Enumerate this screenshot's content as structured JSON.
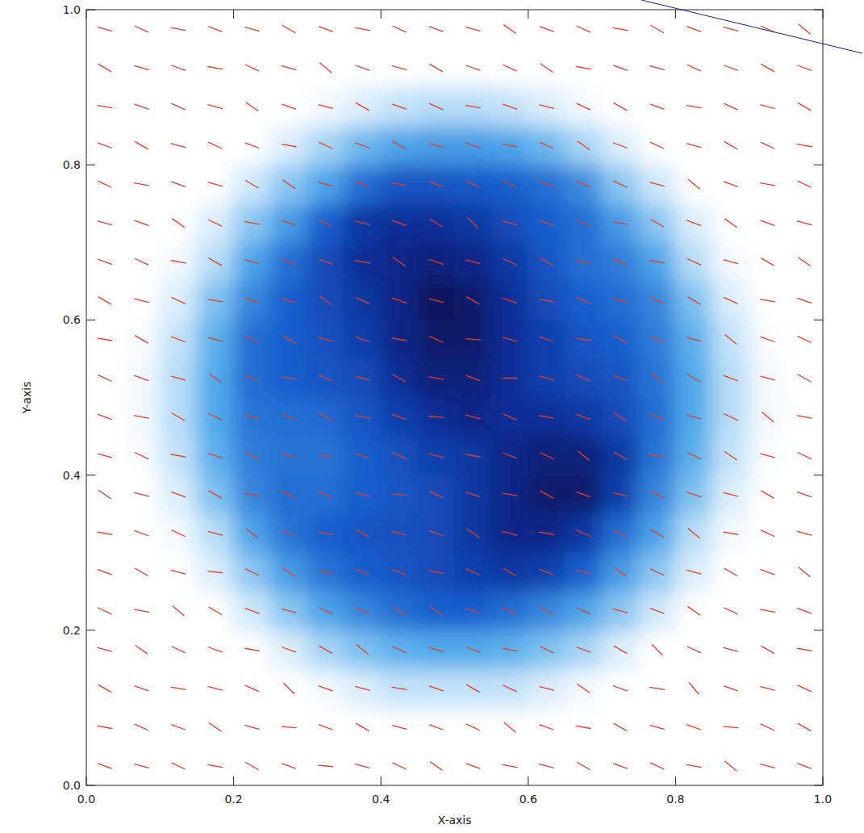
{
  "chart_data": {
    "type": "heatmap",
    "x_label": "X-axis",
    "y_label": "Y-axis",
    "xlim": [
      0,
      1
    ],
    "ylim": [
      0,
      1
    ],
    "xticks": [
      {
        "value": 0,
        "label": "0.0"
      },
      {
        "value": 0.2,
        "label": "0.2"
      },
      {
        "value": 0.4,
        "label": "0.4"
      },
      {
        "value": 0.6,
        "label": "0.6"
      },
      {
        "value": 0.8,
        "label": "0.8"
      },
      {
        "value": 1,
        "label": "1.0"
      }
    ],
    "yticks": [
      {
        "value": 0,
        "label": "0.0"
      },
      {
        "value": 0.2,
        "label": "0.2"
      },
      {
        "value": 0.4,
        "label": "0.4"
      },
      {
        "value": 0.6,
        "label": "0.6"
      },
      {
        "value": 0.8,
        "label": "0.8"
      },
      {
        "value": 1,
        "label": "1.0"
      }
    ],
    "x": [
      0.025,
      0.075,
      0.125,
      0.175,
      0.225,
      0.275,
      0.325,
      0.375,
      0.425,
      0.475,
      0.525,
      0.575,
      0.625,
      0.675,
      0.725,
      0.775,
      0.825,
      0.875,
      0.925,
      0.975
    ],
    "y": [
      0.025,
      0.075,
      0.125,
      0.175,
      0.225,
      0.275,
      0.325,
      0.375,
      0.425,
      0.475,
      0.525,
      0.575,
      0.625,
      0.675,
      0.725,
      0.775,
      0.825,
      0.875,
      0.925,
      0.975
    ],
    "cells": [
      [
        0,
        0,
        0,
        0,
        0,
        0,
        0,
        0,
        0,
        0,
        0,
        0,
        0,
        0,
        0,
        0,
        0,
        0,
        0,
        0
      ],
      [
        0,
        0,
        0,
        0,
        0,
        0,
        0,
        0,
        0,
        0,
        0,
        0,
        0,
        0,
        0,
        0,
        0,
        0,
        0,
        0
      ],
      [
        0,
        0,
        0,
        0,
        0,
        0,
        0.02,
        0.06,
        0.1,
        0.1,
        0.1,
        0.1,
        0.06,
        0.02,
        0,
        0,
        0,
        0,
        0,
        0
      ],
      [
        0,
        0,
        0,
        0,
        0,
        0.06,
        0.15,
        0.22,
        0.28,
        0.3,
        0.3,
        0.28,
        0.22,
        0.15,
        0.06,
        0,
        0,
        0,
        0,
        0
      ],
      [
        0,
        0,
        0,
        0,
        0.08,
        0.2,
        0.32,
        0.42,
        0.5,
        0.55,
        0.55,
        0.5,
        0.42,
        0.32,
        0.2,
        0.08,
        0,
        0,
        0,
        0
      ],
      [
        0,
        0,
        0,
        0.06,
        0.2,
        0.35,
        0.48,
        0.55,
        0.6,
        0.65,
        0.7,
        0.75,
        0.7,
        0.55,
        0.35,
        0.2,
        0.06,
        0,
        0,
        0
      ],
      [
        0,
        0,
        0.02,
        0.12,
        0.32,
        0.48,
        0.55,
        0.6,
        0.62,
        0.65,
        0.75,
        0.85,
        0.85,
        0.75,
        0.5,
        0.32,
        0.12,
        0.02,
        0,
        0
      ],
      [
        0,
        0,
        0.06,
        0.22,
        0.42,
        0.5,
        0.5,
        0.55,
        0.6,
        0.65,
        0.75,
        0.85,
        0.95,
        0.95,
        0.7,
        0.42,
        0.22,
        0.06,
        0,
        0
      ],
      [
        0,
        0.01,
        0.1,
        0.28,
        0.45,
        0.48,
        0.48,
        0.55,
        0.62,
        0.7,
        0.75,
        0.85,
        0.9,
        0.9,
        0.75,
        0.48,
        0.28,
        0.1,
        0.01,
        0
      ],
      [
        0,
        0.02,
        0.12,
        0.3,
        0.48,
        0.5,
        0.52,
        0.6,
        0.7,
        0.8,
        0.85,
        0.8,
        0.8,
        0.75,
        0.65,
        0.5,
        0.3,
        0.12,
        0.02,
        0
      ],
      [
        0,
        0.02,
        0.12,
        0.3,
        0.5,
        0.55,
        0.6,
        0.65,
        0.8,
        0.9,
        0.9,
        0.8,
        0.7,
        0.65,
        0.6,
        0.48,
        0.3,
        0.12,
        0.02,
        0
      ],
      [
        0,
        0.01,
        0.1,
        0.28,
        0.5,
        0.55,
        0.62,
        0.7,
        0.85,
        0.95,
        0.95,
        0.8,
        0.7,
        0.6,
        0.55,
        0.45,
        0.28,
        0.1,
        0.01,
        0
      ],
      [
        0,
        0,
        0.06,
        0.22,
        0.42,
        0.55,
        0.65,
        0.75,
        0.85,
        1.0,
        0.95,
        0.8,
        0.65,
        0.55,
        0.5,
        0.42,
        0.22,
        0.06,
        0,
        0
      ],
      [
        0,
        0,
        0.02,
        0.12,
        0.32,
        0.5,
        0.65,
        0.8,
        0.85,
        0.9,
        0.85,
        0.75,
        0.6,
        0.5,
        0.45,
        0.32,
        0.12,
        0.02,
        0,
        0
      ],
      [
        0,
        0,
        0,
        0.06,
        0.2,
        0.35,
        0.55,
        0.75,
        0.8,
        0.8,
        0.75,
        0.65,
        0.55,
        0.5,
        0.35,
        0.2,
        0.06,
        0,
        0,
        0
      ],
      [
        0,
        0,
        0,
        0,
        0.08,
        0.2,
        0.32,
        0.5,
        0.6,
        0.6,
        0.58,
        0.55,
        0.5,
        0.4,
        0.2,
        0.08,
        0,
        0,
        0,
        0
      ],
      [
        0,
        0,
        0,
        0,
        0,
        0.06,
        0.15,
        0.25,
        0.32,
        0.35,
        0.35,
        0.32,
        0.25,
        0.15,
        0.06,
        0,
        0,
        0,
        0,
        0
      ],
      [
        0,
        0,
        0,
        0,
        0,
        0,
        0.02,
        0.06,
        0.1,
        0.12,
        0.12,
        0.1,
        0.06,
        0.02,
        0,
        0,
        0,
        0,
        0,
        0
      ],
      [
        0,
        0,
        0,
        0,
        0,
        0,
        0,
        0,
        0,
        0,
        0,
        0,
        0,
        0,
        0,
        0,
        0,
        0,
        0,
        0
      ],
      [
        0,
        0,
        0,
        0,
        0,
        0,
        0,
        0,
        0,
        0,
        0,
        0,
        0,
        0,
        0,
        0,
        0,
        0,
        0,
        0
      ]
    ],
    "color": "#e0402a",
    "vector_angles": [
      [
        -20,
        -15,
        -25,
        -10,
        -30,
        -20,
        -5,
        -15,
        -25,
        -35,
        -20,
        -10,
        -15,
        -30,
        -20,
        -25,
        -10,
        -40,
        -15,
        -20
      ],
      [
        -10,
        -25,
        -20,
        -35,
        -15,
        -5,
        -20,
        -30,
        -15,
        -20,
        -25,
        -40,
        -20,
        -10,
        -30,
        -15,
        -20,
        -5,
        -25,
        -30
      ],
      [
        -30,
        -20,
        -10,
        -15,
        -25,
        -45,
        -20,
        -15,
        -10,
        -20,
        -30,
        -25,
        -15,
        -35,
        -20,
        -10,
        -50,
        -20,
        -15,
        -25
      ],
      [
        -15,
        -35,
        -25,
        -20,
        -10,
        -20,
        -30,
        -40,
        -25,
        -15,
        -20,
        -10,
        -25,
        -20,
        -30,
        -45,
        -25,
        -15,
        -30,
        -10
      ],
      [
        -25,
        -10,
        -40,
        -30,
        -20,
        -15,
        -25,
        -20,
        -30,
        -35,
        -15,
        -20,
        -30,
        -25,
        -15,
        -20,
        -35,
        -25,
        -10,
        -20
      ],
      [
        -20,
        -30,
        -15,
        -5,
        -25,
        -35,
        -15,
        -25,
        -20,
        -10,
        -25,
        -30,
        -20,
        -15,
        -35,
        -25,
        -15,
        -30,
        -20,
        -40
      ],
      [
        -10,
        -20,
        -25,
        -15,
        -40,
        -20,
        -10,
        -30,
        -15,
        -20,
        -35,
        -15,
        -10,
        -25,
        -20,
        -30,
        -40,
        -10,
        -25,
        -15
      ],
      [
        -35,
        -15,
        -20,
        -30,
        -10,
        -25,
        -20,
        -15,
        -5,
        -25,
        -20,
        -10,
        -30,
        -20,
        -15,
        -25,
        -20,
        -15,
        -30,
        -20
      ],
      [
        -15,
        -25,
        -10,
        -20,
        -30,
        -15,
        -5,
        -20,
        -25,
        -15,
        -10,
        -20,
        -25,
        -40,
        -30,
        -10,
        -25,
        -35,
        -15,
        -25
      ],
      [
        -20,
        -10,
        -30,
        -25,
        -15,
        -20,
        -30,
        -10,
        -20,
        -5,
        -15,
        -25,
        -10,
        -20,
        -35,
        -20,
        -15,
        -25,
        -40,
        -10
      ],
      [
        -25,
        -20,
        -15,
        -35,
        -20,
        -10,
        -25,
        -15,
        -30,
        -10,
        -20,
        0,
        -15,
        -25,
        -20,
        -40,
        -30,
        -20,
        -15,
        -30
      ],
      [
        -10,
        -30,
        -20,
        -15,
        -25,
        -30,
        -15,
        -20,
        -10,
        -25,
        -5,
        -15,
        -20,
        -10,
        -30,
        -25,
        -15,
        -40,
        -20,
        -25
      ],
      [
        -30,
        -15,
        -25,
        -10,
        -20,
        -15,
        -35,
        -25,
        -20,
        -15,
        -30,
        -20,
        -10,
        -25,
        -15,
        -20,
        -30,
        -25,
        -10,
        -20
      ],
      [
        -20,
        -25,
        -10,
        -30,
        -15,
        -25,
        -20,
        -10,
        -35,
        -20,
        -15,
        -25,
        -30,
        -15,
        -20,
        -10,
        -25,
        -15,
        -30,
        -35
      ],
      [
        -15,
        -20,
        -35,
        -25,
        -10,
        -20,
        -30,
        -15,
        -20,
        -30,
        -45,
        -15,
        -20,
        -25,
        -10,
        -30,
        -20,
        -35,
        -20,
        -15
      ],
      [
        -25,
        -10,
        -20,
        -15,
        -30,
        -35,
        -15,
        -25,
        -10,
        -20,
        -25,
        -30,
        -15,
        -20,
        -25,
        -15,
        -40,
        -20,
        -10,
        -25
      ],
      [
        -20,
        -30,
        -15,
        -25,
        -20,
        -10,
        -25,
        -20,
        -30,
        -15,
        -20,
        -10,
        -25,
        -35,
        -20,
        -25,
        -15,
        -30,
        -25,
        -10
      ],
      [
        -10,
        -20,
        -25,
        -15,
        -35,
        -20,
        -15,
        -30,
        -20,
        -25,
        -10,
        -20,
        -15,
        -25,
        -30,
        -20,
        -10,
        -25,
        -15,
        -30
      ],
      [
        -30,
        -15,
        -20,
        -10,
        -25,
        -15,
        -40,
        -20,
        -15,
        -30,
        -20,
        -25,
        -35,
        -10,
        -20,
        -15,
        -25,
        -20,
        -30,
        -20
      ],
      [
        -15,
        -25,
        -10,
        -20,
        -15,
        -30,
        -20,
        -10,
        -25,
        -20,
        -15,
        -35,
        -20,
        -25,
        -10,
        -30,
        -20,
        -15,
        -25,
        -40
      ]
    ]
  }
}
